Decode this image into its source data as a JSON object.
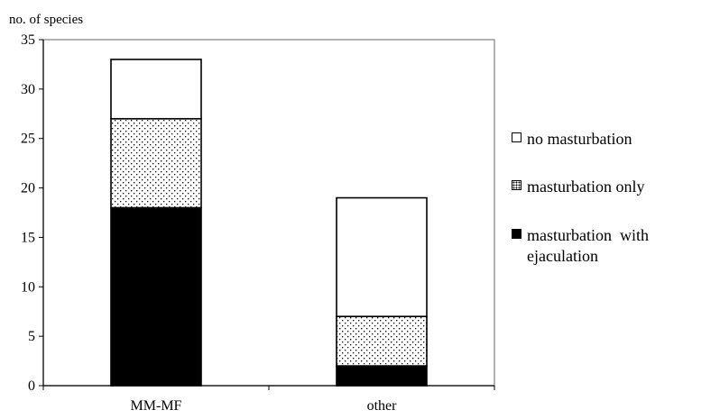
{
  "chart_data": {
    "type": "bar",
    "stacked": true,
    "ylabel": "no. of species",
    "xlabel": "",
    "categories": [
      "MM-MF",
      "other"
    ],
    "ylim": [
      0,
      35
    ],
    "yticks": [
      0,
      5,
      10,
      15,
      20,
      25,
      30,
      35
    ],
    "grid": false,
    "legend_position": "right",
    "series": [
      {
        "name": "masturbation with ejaculation",
        "values": [
          18,
          2
        ],
        "fill": "solid",
        "color": "#000000"
      },
      {
        "name": "masturbation only",
        "values": [
          9,
          5
        ],
        "fill": "dotted",
        "color": "#000000"
      },
      {
        "name": "no  masturbation",
        "values": [
          6,
          12
        ],
        "fill": "empty",
        "color": "#ffffff"
      }
    ]
  },
  "legend": [
    {
      "label": "no  masturbation",
      "fill": "empty"
    },
    {
      "label": "masturbation  only",
      "fill": "dotted"
    },
    {
      "label": "masturbation  with\nejaculation",
      "fill": "solid"
    }
  ]
}
